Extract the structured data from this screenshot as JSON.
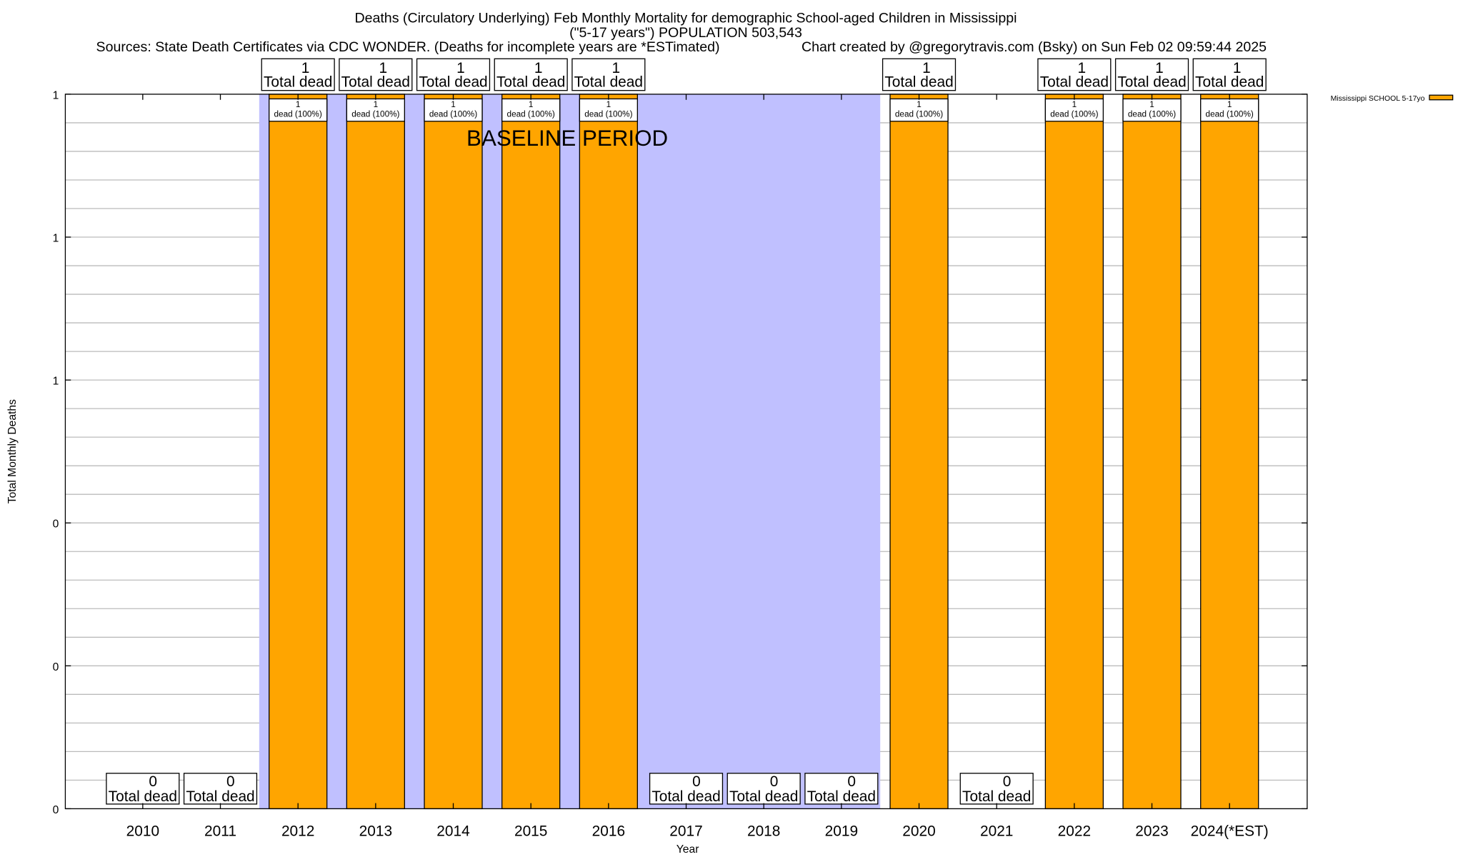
{
  "chart_data": {
    "type": "bar",
    "title": "Deaths (Circulatory Underlying) Feb Monthly Mortality for demographic School-aged Children in Mississippi",
    "subtitle": "(\"5-17 years\") POPULATION 503,543",
    "sources": "Sources: State Death Certificates via CDC WONDER. (Deaths for incomplete years are *ESTimated)",
    "credit": "Chart created by @gregorytravis.com (Bsky) on Sun Feb 02 09:59:44 2025",
    "xlabel": "Year",
    "ylabel": "Total Monthly Deaths",
    "categories": [
      "2010",
      "2011",
      "2012",
      "2013",
      "2014",
      "2015",
      "2016",
      "2017",
      "2018",
      "2019",
      "2020",
      "2021",
      "2022",
      "2023",
      "2024(*EST)"
    ],
    "series": [
      {
        "name": "Mississippi SCHOOL 5-17yo",
        "color": "#FFA500",
        "values": [
          0,
          0,
          1,
          1,
          1,
          1,
          1,
          0,
          0,
          0,
          1,
          0,
          1,
          1,
          1
        ]
      }
    ],
    "ylim": [
      0,
      1
    ],
    "yticks": [
      0,
      0.2,
      0.4,
      0.6,
      0.8,
      1.0
    ],
    "ytick_labels": [
      "0",
      "0",
      "0",
      "1",
      "1",
      "1"
    ],
    "grid": true,
    "legend_position": "right",
    "total_label_suffix": "Total dead",
    "bar_label_suffix": "dead (100%)",
    "baseline": {
      "label": "BASELINE PERIOD",
      "from": "2012",
      "to": "2019",
      "color": "#C0C0FF"
    }
  }
}
